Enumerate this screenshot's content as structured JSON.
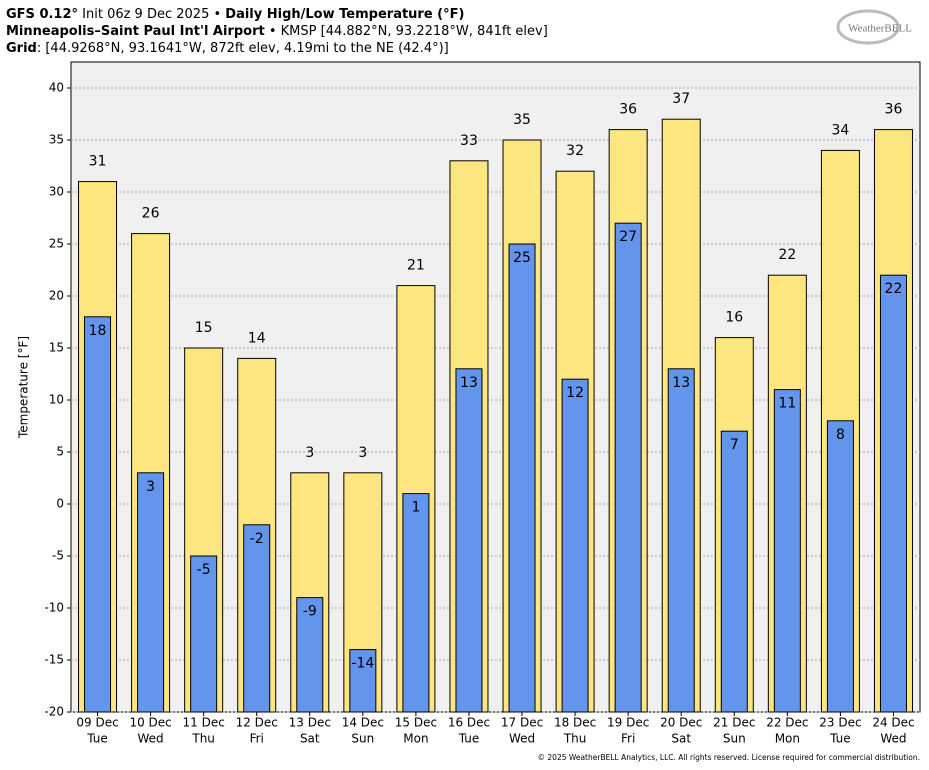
{
  "chart_data": {
    "type": "bar",
    "header": [
      [
        {
          "bold": true,
          "text": "GFS 0.12°"
        },
        {
          "bold": false,
          "text": " Init 06z 9 Dec 2025 • "
        },
        {
          "bold": true,
          "text": "Daily High/Low Temperature (°F)"
        }
      ],
      [
        {
          "bold": true,
          "text": "Minneapolis–Saint Paul Int'l Airport"
        },
        {
          "bold": false,
          "text": " • KMSP [44.882°N, 93.2218°W, 841ft elev]"
        }
      ],
      [
        {
          "bold": true,
          "text": "Grid"
        },
        {
          "bold": false,
          "text": ": [44.9268°N, 93.1641°W, 872ft elev, 4.19mi to the NE (42.4°)]"
        }
      ]
    ],
    "logo": "WeatherBELL",
    "footer": "© 2025 WeatherBELL Analytics, LLC. All rights reserved. License required for commercial distribution.",
    "y_label": "Temperature [°F]",
    "categories": [
      "09 Dec",
      "10 Dec",
      "11 Dec",
      "12 Dec",
      "13 Dec",
      "14 Dec",
      "15 Dec",
      "16 Dec",
      "17 Dec",
      "18 Dec",
      "19 Dec",
      "20 Dec",
      "21 Dec",
      "22 Dec",
      "23 Dec",
      "24 Dec"
    ],
    "weekdays": [
      "Tue",
      "Wed",
      "Thu",
      "Fri",
      "Sat",
      "Sun",
      "Mon",
      "Tue",
      "Wed",
      "Thu",
      "Fri",
      "Sat",
      "Sun",
      "Mon",
      "Tue",
      "Wed"
    ],
    "series": [
      {
        "color": "#fde680",
        "values": [
          31,
          26,
          15,
          14,
          3,
          3,
          21,
          33,
          35,
          32,
          36,
          37,
          16,
          22,
          34,
          36
        ]
      },
      {
        "color": "#6495ed",
        "values": [
          18,
          3,
          -5,
          -2,
          -9,
          -14,
          1,
          13,
          25,
          12,
          27,
          13,
          7,
          11,
          8,
          22
        ]
      }
    ],
    "ylim": [
      -20,
      42.5
    ],
    "yticks": [
      -20,
      -15,
      -10,
      -5,
      0,
      5,
      10,
      15,
      20,
      25,
      30,
      35,
      40
    ],
    "grid": true
  }
}
